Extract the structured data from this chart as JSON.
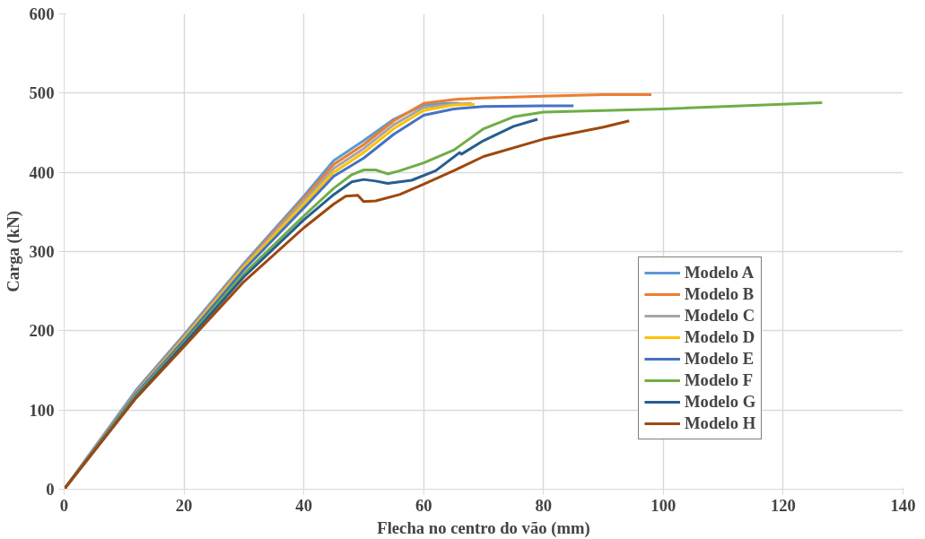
{
  "chart_data": {
    "type": "line",
    "xlabel": "Flecha no centro do vão (mm)",
    "ylabel": "Carga (kN)",
    "xlim": [
      0,
      140
    ],
    "ylim": [
      0,
      600
    ],
    "xticks": [
      0,
      20,
      40,
      60,
      80,
      100,
      120,
      140
    ],
    "yticks": [
      0,
      100,
      200,
      300,
      400,
      500,
      600
    ],
    "grid": true,
    "legend": "right",
    "marker": "none",
    "line_style": "solid",
    "series": [
      {
        "name": "Modelo A",
        "color": "#5b9bd5",
        "x": [
          0,
          12,
          20,
          30,
          40,
          45,
          50,
          55,
          60,
          64,
          66
        ],
        "values": [
          0,
          125,
          195,
          285,
          370,
          415,
          440,
          467,
          485,
          487,
          487
        ]
      },
      {
        "name": "Modelo B",
        "color": "#ed7d31",
        "x": [
          0,
          12,
          20,
          30,
          40,
          45,
          50,
          55,
          60,
          65,
          70,
          80,
          90,
          98
        ],
        "values": [
          0,
          123,
          193,
          283,
          367,
          410,
          435,
          465,
          487,
          492,
          494,
          496,
          498,
          498
        ]
      },
      {
        "name": "Modelo C",
        "color": "#a5a5a5",
        "x": [
          0,
          12,
          20,
          30,
          40,
          45,
          50,
          55,
          60,
          65,
          68
        ],
        "values": [
          0,
          122,
          192,
          282,
          364,
          405,
          430,
          460,
          482,
          486,
          487
        ]
      },
      {
        "name": "Modelo D",
        "color": "#ffc000",
        "x": [
          0,
          12,
          20,
          30,
          40,
          45,
          50,
          55,
          60,
          65,
          68.5
        ],
        "values": [
          0,
          120,
          190,
          280,
          360,
          400,
          425,
          455,
          478,
          485,
          486
        ]
      },
      {
        "name": "Modelo E",
        "color": "#4472c4",
        "x": [
          0,
          12,
          20,
          30,
          40,
          45,
          50,
          55,
          60,
          65,
          70,
          80,
          85
        ],
        "values": [
          0,
          120,
          188,
          277,
          355,
          395,
          418,
          448,
          472,
          480,
          483,
          484,
          484
        ]
      },
      {
        "name": "Modelo F",
        "color": "#70ad47",
        "x": [
          0,
          12,
          20,
          30,
          40,
          45,
          48,
          50,
          52,
          54,
          56,
          60,
          65,
          70,
          75,
          80,
          100,
          126.5
        ],
        "values": [
          0,
          118,
          185,
          272,
          345,
          380,
          397,
          403,
          403,
          398,
          402,
          412,
          428,
          455,
          470,
          476,
          480,
          488
        ]
      },
      {
        "name": "Modelo G",
        "color": "#255e91",
        "x": [
          0,
          12,
          20,
          30,
          40,
          45,
          48,
          50,
          52,
          54,
          58,
          62,
          66,
          66.3,
          70,
          75,
          79
        ],
        "values": [
          0,
          116,
          183,
          268,
          340,
          372,
          388,
          391,
          389,
          386,
          390,
          402,
          425,
          423,
          440,
          458,
          467
        ]
      },
      {
        "name": "Modelo H",
        "color": "#9e480e",
        "x": [
          0,
          12,
          20,
          30,
          40,
          45,
          47,
          49,
          50,
          52,
          56,
          60,
          65,
          70,
          80,
          90,
          94.3
        ],
        "values": [
          0,
          115,
          180,
          262,
          330,
          360,
          370,
          371,
          363,
          364,
          372,
          385,
          402,
          420,
          442,
          457,
          465
        ]
      }
    ]
  }
}
